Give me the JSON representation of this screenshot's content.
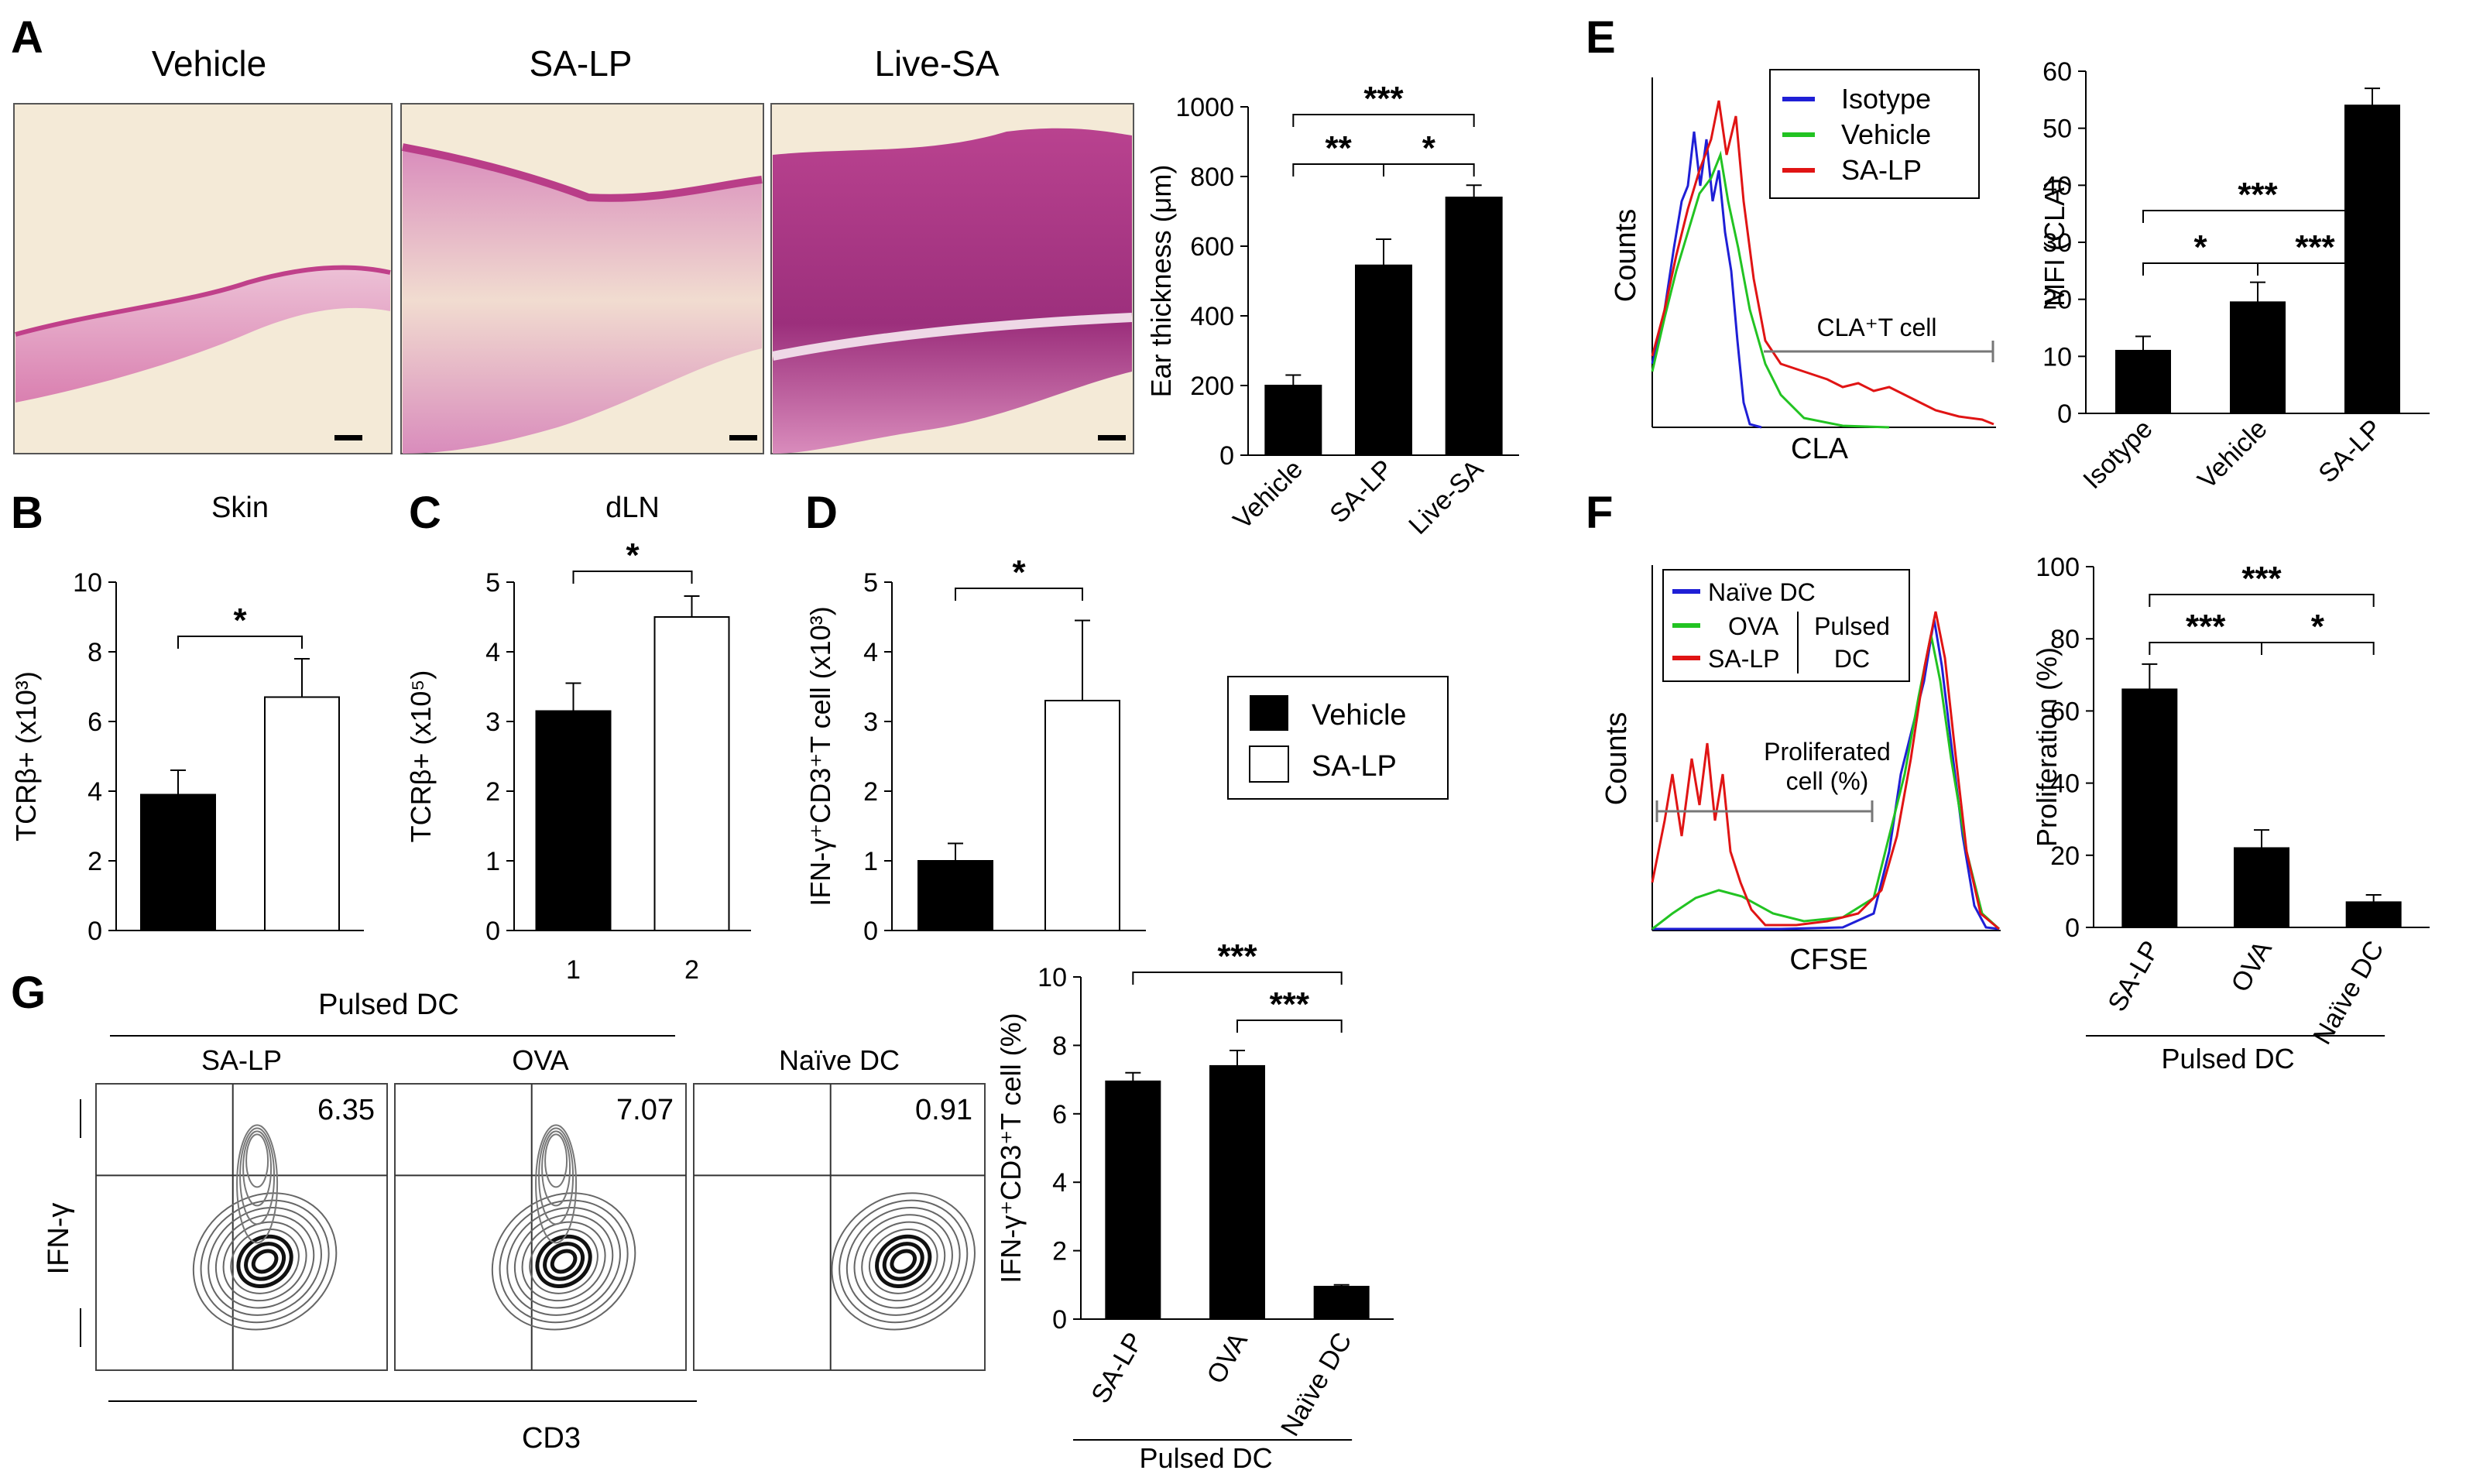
{
  "panel_labels": {
    "A": "A",
    "B": "B",
    "C": "C",
    "D": "D",
    "E": "E",
    "F": "F",
    "G": "G"
  },
  "histology": {
    "titles": [
      "Vehicle",
      "SA-LP",
      "Live-SA"
    ]
  },
  "legend_bcd": {
    "vehicle": "Vehicle",
    "salp": "SA-LP"
  },
  "histo_E": {
    "xlabel": "CLA",
    "ylabel": "Counts",
    "gate_label": "CLA⁺T cell",
    "legend": [
      "Isotype",
      "Vehicle",
      "SA-LP"
    ],
    "colors": [
      "#1f1fd6",
      "#22c322",
      "#e01414"
    ]
  },
  "histo_F": {
    "xlabel": "CFSE",
    "ylabel": "Counts",
    "gate_label_1": "Proliferated",
    "gate_label_2": "cell (%)",
    "legend": [
      "Naïve DC",
      "OVA",
      "SA-LP"
    ],
    "group_label_1": "Pulsed",
    "group_label_2": "DC",
    "colors": [
      "#1f1fd6",
      "#22c322",
      "#e01414"
    ]
  },
  "flow_G": {
    "group_label": "Pulsed DC",
    "plots": [
      {
        "title": "SA-LP",
        "value": "6.35"
      },
      {
        "title": "OVA",
        "value": "7.07"
      },
      {
        "title": "Naïve DC",
        "value": "0.91"
      }
    ],
    "xlabel": "CD3",
    "ylabel": "IFN-γ"
  },
  "chart_data": [
    {
      "id": "A",
      "type": "bar",
      "title": "",
      "categories": [
        "Vehicle",
        "SA-LP",
        "Live-SA"
      ],
      "values": [
        200,
        545,
        740
      ],
      "errors": [
        30,
        75,
        35
      ],
      "ylabel": "Ear thickness (μm)",
      "ylim": [
        0,
        1000
      ],
      "yticks": [
        0,
        200,
        400,
        600,
        800,
        1000
      ],
      "fills": [
        "#000000",
        "#000000",
        "#000000"
      ],
      "sig": [
        {
          "from": 0,
          "to": 1,
          "label": "**"
        },
        {
          "from": 1,
          "to": 2,
          "label": "*"
        },
        {
          "from": 0,
          "to": 2,
          "label": "***"
        }
      ]
    },
    {
      "id": "B",
      "type": "bar",
      "title": "Skin",
      "categories": [
        "",
        ""
      ],
      "values": [
        3.9,
        6.7
      ],
      "errors": [
        0.7,
        1.1
      ],
      "ylabel": "TCRβ+ (x10³)",
      "ylim": [
        0,
        10
      ],
      "yticks": [
        0,
        2,
        4,
        6,
        8,
        10
      ],
      "fills": [
        "#000000",
        "#ffffff"
      ],
      "sig": [
        {
          "from": 0,
          "to": 1,
          "label": "*"
        }
      ]
    },
    {
      "id": "C",
      "type": "bar",
      "title": "dLN",
      "categories": [
        "1",
        "2"
      ],
      "values": [
        3.15,
        4.5
      ],
      "errors": [
        0.4,
        0.3
      ],
      "ylabel": "TCRβ+ (x10⁵)",
      "ylim": [
        0,
        5
      ],
      "yticks": [
        0,
        1,
        2,
        3,
        4,
        5
      ],
      "fills": [
        "#000000",
        "#ffffff"
      ],
      "sig": [
        {
          "from": 0,
          "to": 1,
          "label": "*"
        }
      ]
    },
    {
      "id": "D",
      "type": "bar",
      "title": "",
      "categories": [
        "",
        ""
      ],
      "values": [
        1.0,
        3.3
      ],
      "errors": [
        0.25,
        1.15
      ],
      "ylabel": "IFN-γ⁺CD3⁺T cell (x10³)",
      "ylim": [
        0,
        5
      ],
      "yticks": [
        0,
        1,
        2,
        3,
        4,
        5
      ],
      "fills": [
        "#000000",
        "#ffffff"
      ],
      "sig": [
        {
          "from": 0,
          "to": 1,
          "label": "*"
        }
      ]
    },
    {
      "id": "E",
      "type": "bar",
      "title": "",
      "categories": [
        "Isotype",
        "Vehicle",
        "SA-LP"
      ],
      "values": [
        11,
        19.5,
        54
      ],
      "errors": [
        2.5,
        3.5,
        3
      ],
      "ylabel": "MFI (CLA)",
      "ylim": [
        0,
        60
      ],
      "yticks": [
        0,
        10,
        20,
        30,
        40,
        50,
        60
      ],
      "fills": [
        "#000000",
        "#000000",
        "#000000"
      ],
      "sig": [
        {
          "from": 0,
          "to": 1,
          "label": "*"
        },
        {
          "from": 1,
          "to": 2,
          "label": "***"
        },
        {
          "from": 0,
          "to": 2,
          "label": "***"
        }
      ]
    },
    {
      "id": "F",
      "type": "bar",
      "title": "",
      "categories": [
        "SA-LP",
        "OVA",
        "Naïve DC"
      ],
      "values": [
        66,
        22,
        7
      ],
      "errors": [
        7,
        5,
        2
      ],
      "ylabel": "Proliferation (%)",
      "ylim": [
        0,
        100
      ],
      "yticks": [
        0,
        20,
        40,
        60,
        80,
        100
      ],
      "fills": [
        "#000000",
        "#000000",
        "#000000"
      ],
      "group_label": "Pulsed DC",
      "sig": [
        {
          "from": 0,
          "to": 1,
          "label": "***"
        },
        {
          "from": 1,
          "to": 2,
          "label": "*"
        },
        {
          "from": 0,
          "to": 2,
          "label": "***"
        }
      ]
    },
    {
      "id": "G",
      "type": "bar",
      "title": "",
      "categories": [
        "SA-LP",
        "OVA",
        "Naïve DC"
      ],
      "values": [
        6.95,
        7.4,
        0.95
      ],
      "errors": [
        0.25,
        0.45,
        0.05
      ],
      "ylabel": "IFN-γ⁺CD3⁺T cell (%)",
      "ylim": [
        0,
        10
      ],
      "yticks": [
        0,
        2,
        4,
        6,
        8,
        10
      ],
      "fills": [
        "#000000",
        "#000000",
        "#000000"
      ],
      "group_label": "Pulsed DC",
      "sig": [
        {
          "from": 1,
          "to": 2,
          "label": "***"
        },
        {
          "from": 0,
          "to": 2,
          "label": "***"
        }
      ]
    }
  ]
}
